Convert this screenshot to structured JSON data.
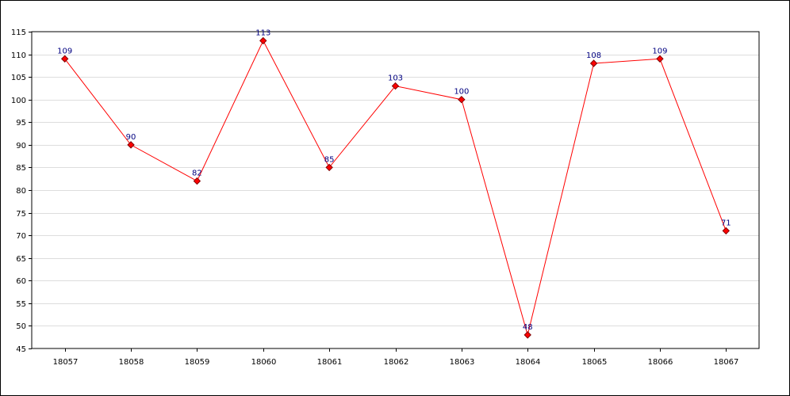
{
  "chart_data": {
    "type": "line",
    "title": "",
    "xlabel": "",
    "ylabel": "",
    "categories": [
      "18057",
      "18058",
      "18059",
      "18060",
      "18061",
      "18062",
      "18063",
      "18064",
      "18065",
      "18066",
      "18067"
    ],
    "values": [
      109,
      90,
      82,
      113,
      85,
      103,
      100,
      48,
      108,
      109,
      71
    ],
    "data_labels": [
      "109",
      "90",
      "82",
      "113",
      "85",
      "103",
      "100",
      "48",
      "108",
      "109",
      "71"
    ],
    "ylim": [
      45,
      115
    ],
    "yticks": [
      45,
      50,
      55,
      60,
      65,
      70,
      75,
      80,
      85,
      90,
      95,
      100,
      105,
      110,
      115
    ],
    "ytick_labels": [
      "45",
      "50",
      "55",
      "60",
      "65",
      "70",
      "75",
      "80",
      "85",
      "90",
      "95",
      "100",
      "105",
      "110",
      "115"
    ],
    "grid": true,
    "legend": "none",
    "colors": {
      "line": "#ff0000",
      "marker_fill": "#ff0000",
      "marker_stroke": "#800000",
      "data_label": "#000080",
      "grid": "#dddddd",
      "axis": "#000000"
    }
  }
}
